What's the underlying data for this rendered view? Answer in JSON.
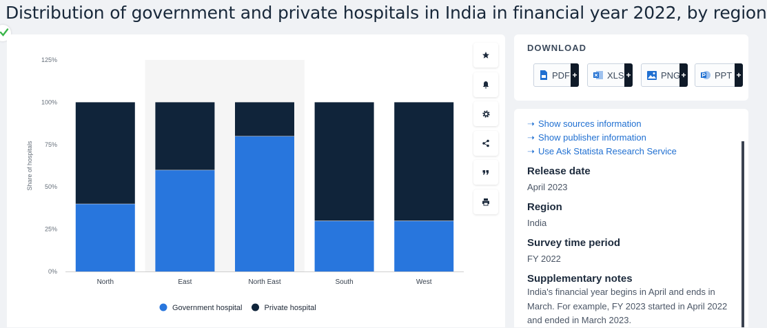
{
  "title": "Distribution of government and private hospitals in India in financial year 2022, by region",
  "chart_data": {
    "type": "bar",
    "stacked": true,
    "categories": [
      "North",
      "East",
      "North East",
      "South",
      "West"
    ],
    "series": [
      {
        "name": "Government hospital",
        "color": "#2876dd",
        "values": [
          40,
          60,
          80,
          30,
          30
        ]
      },
      {
        "name": "Private hospital",
        "color": "#10243a",
        "values": [
          60,
          40,
          20,
          70,
          70
        ]
      }
    ],
    "ylabel": "Share of hospitals",
    "ylim": [
      0,
      125
    ],
    "yticks": [
      "0%",
      "25%",
      "50%",
      "75%",
      "100%",
      "125%"
    ],
    "ytick_values": [
      0,
      25,
      50,
      75,
      100,
      125
    ],
    "highlighted_categories": [
      "East",
      "North East"
    ],
    "legend_position": "bottom",
    "grid": false
  },
  "toolbar": {
    "icons": [
      "star-icon",
      "bell-icon",
      "gear-icon",
      "share-icon",
      "quote-icon",
      "print-icon"
    ]
  },
  "download": {
    "heading": "DOWNLOAD",
    "buttons": [
      {
        "label": "PDF",
        "icon": "pdf-file-icon",
        "plus": "+"
      },
      {
        "label": "XLS",
        "icon": "xls-file-icon",
        "plus": "+"
      },
      {
        "label": "PNG",
        "icon": "png-image-icon",
        "plus": "+"
      },
      {
        "label": "PPT",
        "icon": "ppt-file-icon",
        "plus": "+"
      }
    ]
  },
  "info": {
    "links": [
      "Show sources information",
      "Show publisher information",
      "Use Ask Statista Research Service"
    ],
    "release_date_heading": "Release date",
    "release_date": "April 2023",
    "region_heading": "Region",
    "region": "India",
    "survey_period_heading": "Survey time period",
    "survey_period": "FY 2022",
    "notes_heading": "Supplementary notes",
    "notes": "India's financial year begins in April and ends in March. For example, FY 2023 started in April 2022 and ended in March 2023."
  }
}
